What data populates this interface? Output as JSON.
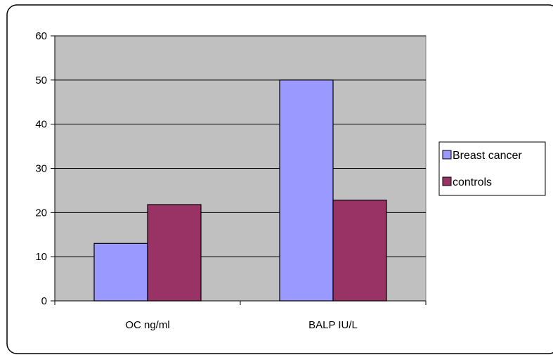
{
  "chart_data": {
    "type": "bar",
    "title": "",
    "xlabel": "",
    "ylabel": "",
    "categories": [
      "OC ng/ml",
      "BALP IU/L"
    ],
    "series": [
      {
        "name": "Breast cancer",
        "values": [
          13,
          50
        ],
        "color": "#9999ff"
      },
      {
        "name": "controls",
        "values": [
          21.8,
          22.8
        ],
        "color": "#993366"
      }
    ],
    "ylim": [
      0,
      60
    ],
    "yticks": [
      "0",
      "10",
      "20",
      "30",
      "40",
      "50",
      "60"
    ],
    "grid": true,
    "legend": "right",
    "plot_background": "#c0c0c0"
  }
}
